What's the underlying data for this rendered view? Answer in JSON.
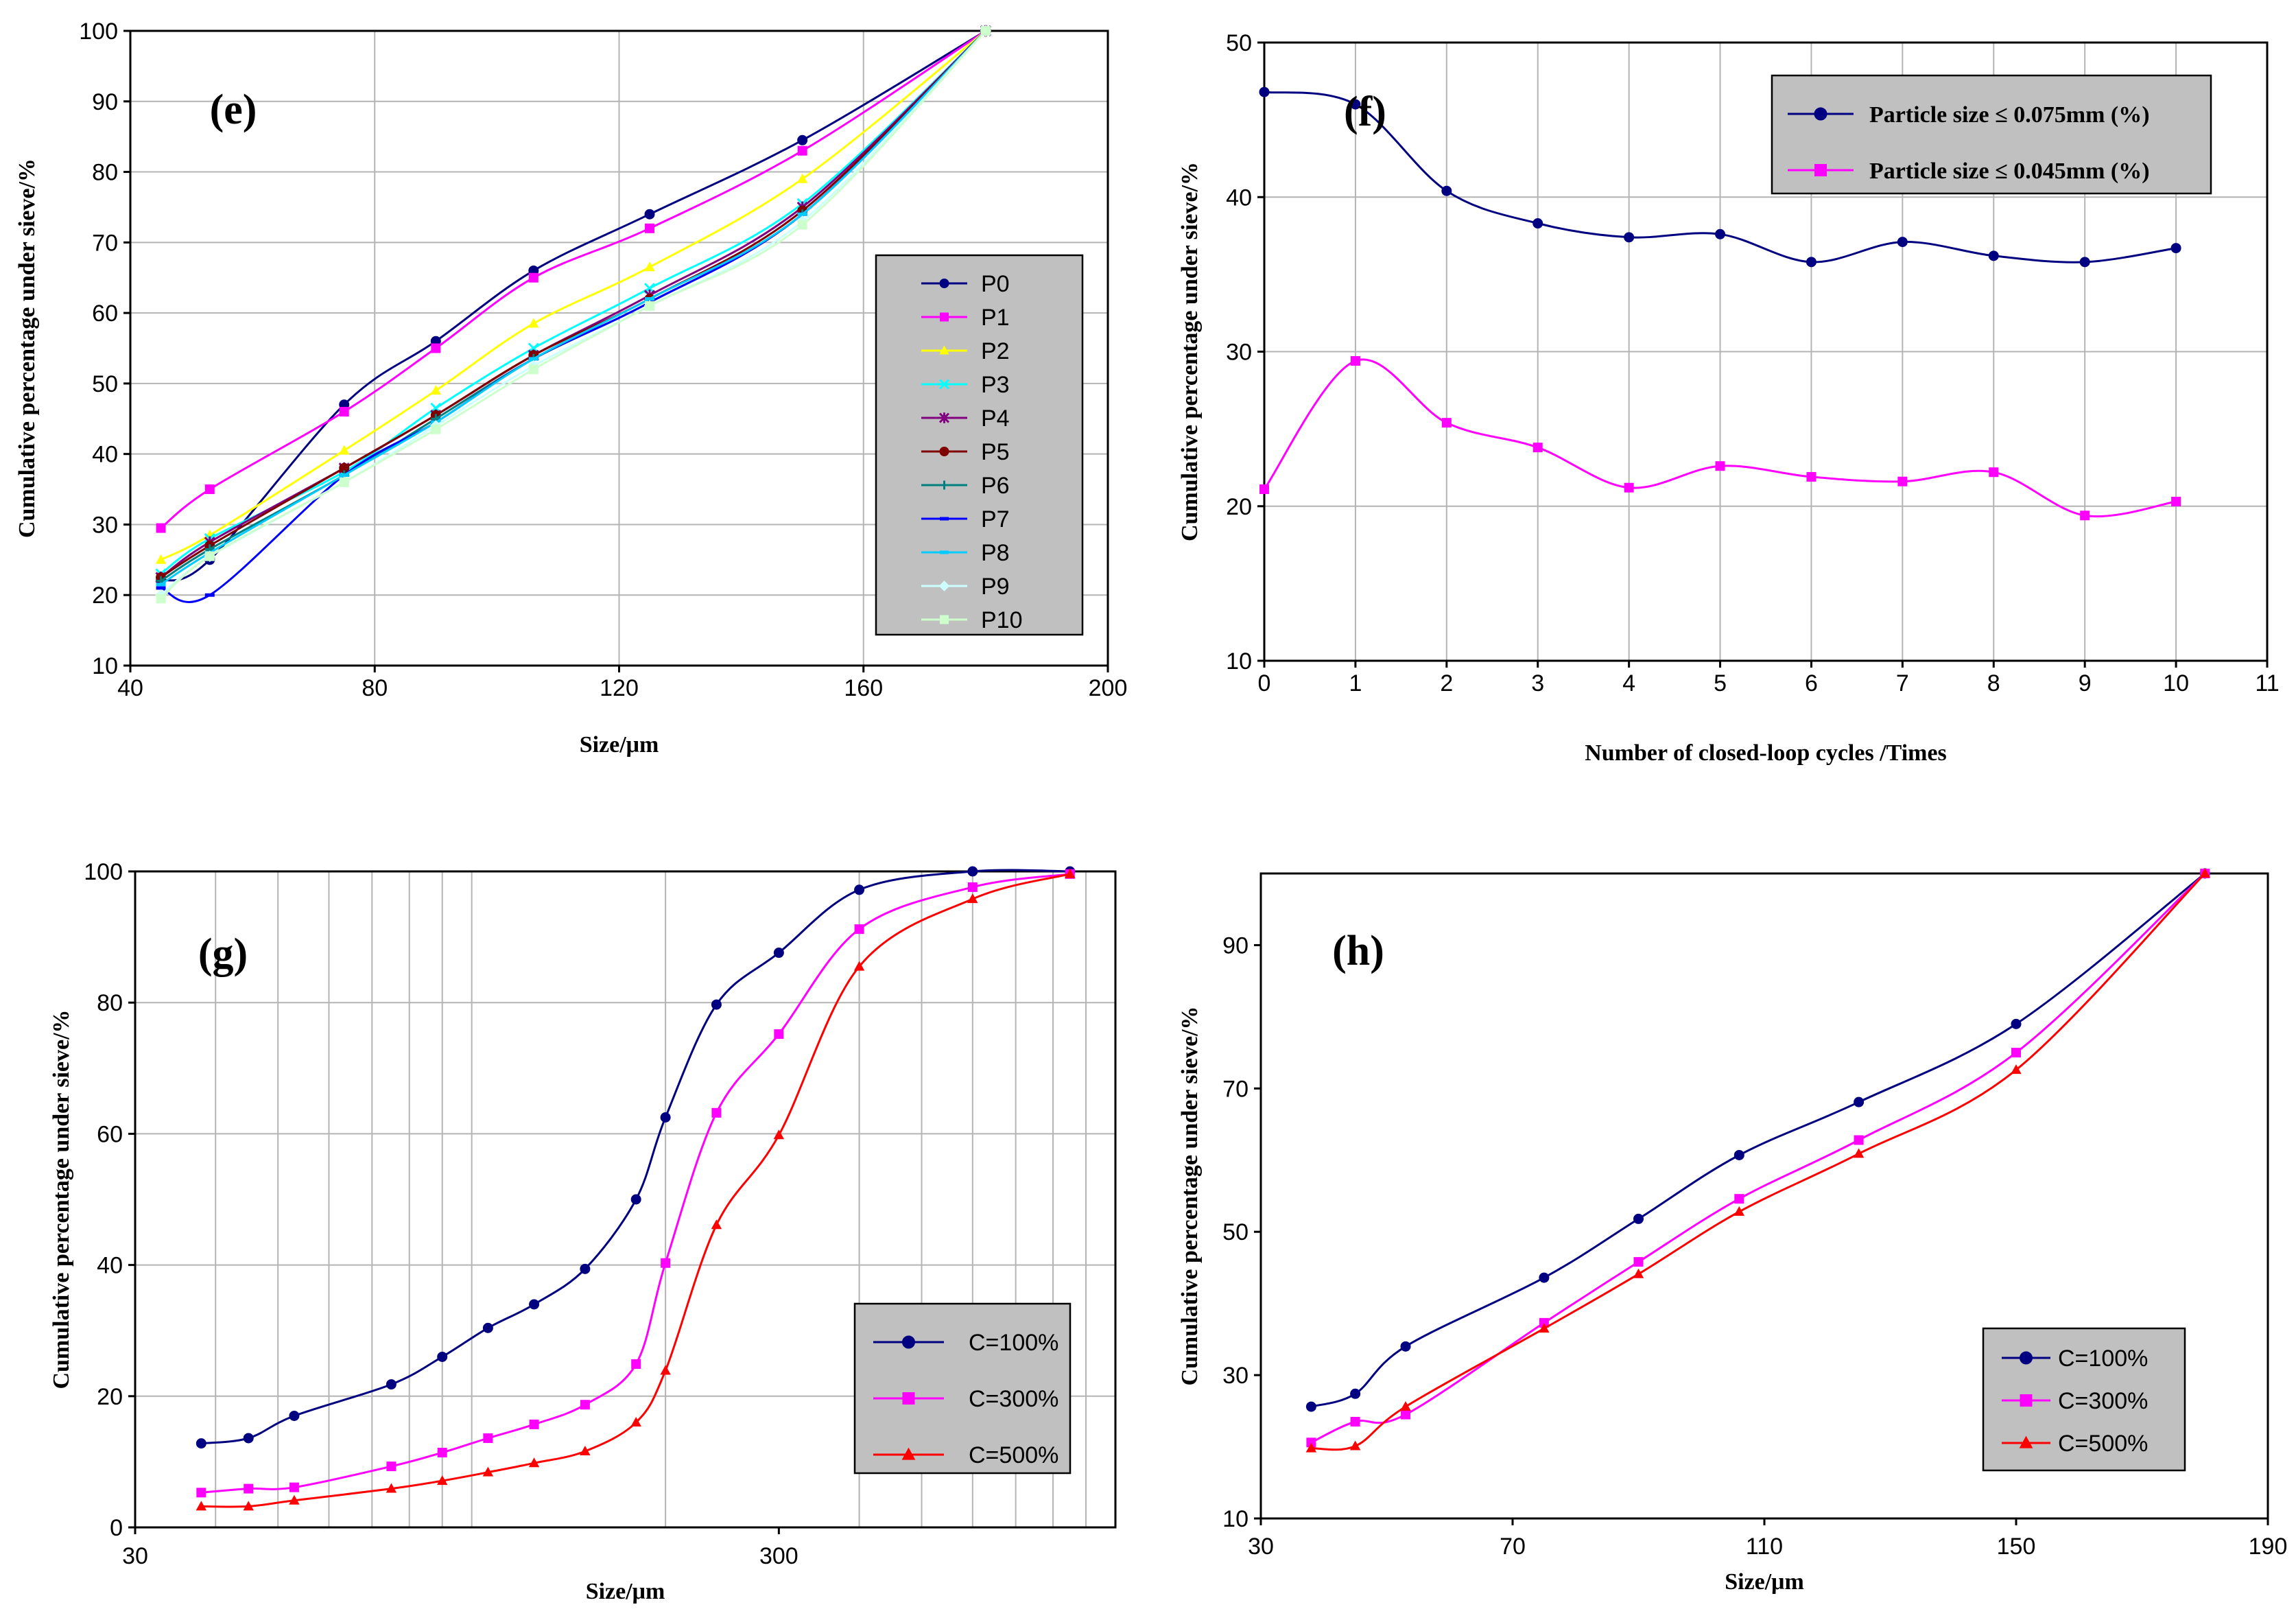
{
  "chart_data": [
    {
      "type": "line",
      "panel_label": "(e)",
      "xlabel": "Size/μm",
      "ylabel": "Cumulative percentage under sieve/%",
      "xlim": [
        40,
        200
      ],
      "ylim": [
        10,
        100
      ],
      "x_ticks": [
        40,
        80,
        120,
        160,
        200
      ],
      "y_ticks": [
        10,
        20,
        30,
        40,
        50,
        60,
        70,
        80,
        90,
        100
      ],
      "grid": true,
      "legend_position": "right-bottom",
      "series": [
        {
          "name": "P0",
          "color": "#000080",
          "marker": "circle",
          "x": [
            45,
            53,
            75,
            90,
            106,
            125,
            150,
            180
          ],
          "y": [
            22,
            25,
            47,
            56,
            66,
            74,
            84.5,
            100
          ]
        },
        {
          "name": "P1",
          "color": "#ff00ff",
          "marker": "square",
          "x": [
            45,
            53,
            75,
            90,
            106,
            125,
            150,
            180
          ],
          "y": [
            29.5,
            35,
            46,
            55,
            65,
            72,
            83,
            100
          ]
        },
        {
          "name": "P2",
          "color": "#ffff00",
          "marker": "triangle",
          "x": [
            45,
            53,
            75,
            90,
            106,
            125,
            150,
            180
          ],
          "y": [
            25,
            28.5,
            40.5,
            49,
            58.5,
            66.5,
            79,
            100
          ]
        },
        {
          "name": "P3",
          "color": "#00ffff",
          "marker": "x",
          "x": [
            45,
            53,
            75,
            90,
            106,
            125,
            150,
            180
          ],
          "y": [
            23,
            28,
            37.5,
            46.5,
            55,
            63.5,
            75.5,
            100
          ]
        },
        {
          "name": "P4",
          "color": "#800080",
          "marker": "star",
          "x": [
            45,
            53,
            75,
            90,
            106,
            125,
            150,
            180
          ],
          "y": [
            22.5,
            27.5,
            38,
            45.5,
            54,
            62.5,
            75,
            100
          ]
        },
        {
          "name": "P5",
          "color": "#800000",
          "marker": "circle",
          "x": [
            45,
            53,
            75,
            90,
            106,
            125,
            150,
            180
          ],
          "y": [
            22.5,
            27,
            38,
            45.5,
            54,
            62,
            74.5,
            100
          ]
        },
        {
          "name": "P6",
          "color": "#008080",
          "marker": "plus",
          "x": [
            45,
            53,
            75,
            90,
            106,
            125,
            150,
            180
          ],
          "y": [
            22,
            26.5,
            37,
            45,
            53.5,
            61.5,
            74,
            100
          ]
        },
        {
          "name": "P7",
          "color": "#0000ff",
          "marker": "dash",
          "x": [
            45,
            53,
            75,
            90,
            106,
            125,
            150,
            180
          ],
          "y": [
            21,
            20,
            37,
            44.5,
            53.5,
            61.5,
            74,
            100
          ]
        },
        {
          "name": "P8",
          "color": "#00ccff",
          "marker": "dash",
          "x": [
            45,
            53,
            75,
            90,
            106,
            125,
            150,
            180
          ],
          "y": [
            21.5,
            26,
            37,
            44.5,
            53.5,
            62,
            74,
            100
          ]
        },
        {
          "name": "P9",
          "color": "#ccffff",
          "marker": "diamond",
          "x": [
            45,
            53,
            75,
            90,
            106,
            125,
            150,
            180
          ],
          "y": [
            20,
            25.5,
            36,
            44,
            52.5,
            61,
            73,
            100
          ]
        },
        {
          "name": "P10",
          "color": "#ccffcc",
          "marker": "square",
          "x": [
            45,
            53,
            75,
            90,
            106,
            125,
            150,
            180
          ],
          "y": [
            19.5,
            25.5,
            36,
            43.5,
            52,
            61,
            72.5,
            100
          ]
        }
      ]
    },
    {
      "type": "line",
      "panel_label": "(f)",
      "xlabel": "Number of closed-loop cycles /Times",
      "ylabel": "Cumulative percentage under sieve/%",
      "xlim": [
        0,
        11
      ],
      "ylim": [
        10,
        50
      ],
      "x_ticks": [
        0,
        1,
        2,
        3,
        4,
        5,
        6,
        7,
        8,
        9,
        10,
        11
      ],
      "y_ticks": [
        10,
        20,
        30,
        40,
        50
      ],
      "grid": true,
      "legend_position": "top-right",
      "series": [
        {
          "name": "Particle size ≤ 0.075mm (%)",
          "color": "#000080",
          "marker": "circle",
          "x": [
            0,
            1,
            2,
            3,
            4,
            5,
            6,
            7,
            8,
            9,
            10
          ],
          "y": [
            46.8,
            46,
            40.4,
            38.3,
            37.4,
            37.6,
            35.8,
            37.1,
            36.2,
            35.8,
            36.7
          ]
        },
        {
          "name": "Particle size ≤ 0.045mm (%)",
          "color": "#ff00ff",
          "marker": "square",
          "x": [
            0,
            1,
            2,
            3,
            4,
            5,
            6,
            7,
            8,
            9,
            10
          ],
          "y": [
            21.1,
            29.4,
            25.4,
            23.8,
            21.2,
            22.6,
            21.9,
            21.6,
            22.2,
            19.4,
            20.3
          ]
        }
      ]
    },
    {
      "type": "line",
      "panel_label": "(g)",
      "xlabel": "Size/μm",
      "ylabel": "Cumulative percentage under sieve/%",
      "x_scale": "log",
      "xlim": [
        30,
        1000
      ],
      "ylim": [
        0,
        100
      ],
      "x_ticks": [
        30,
        300
      ],
      "y_ticks": [
        0,
        20,
        40,
        60,
        80,
        100
      ],
      "grid": true,
      "legend_position": "bottom-right",
      "series": [
        {
          "name": "C=100%",
          "color": "#000080",
          "marker": "circle",
          "x": [
            38,
            45,
            53,
            75,
            90,
            106,
            125,
            150,
            180,
            200,
            240,
            300,
            400,
            600,
            850
          ],
          "y": [
            12.8,
            13.6,
            17,
            21.8,
            26,
            30.4,
            34,
            39.4,
            50,
            62.5,
            79.7,
            87.6,
            97.2,
            100,
            100
          ]
        },
        {
          "name": "C=300%",
          "color": "#ff00ff",
          "marker": "square",
          "x": [
            38,
            45,
            53,
            75,
            90,
            106,
            125,
            150,
            180,
            200,
            240,
            300,
            400,
            600,
            850
          ],
          "y": [
            5.3,
            5.9,
            6.1,
            9.3,
            11.4,
            13.6,
            15.7,
            18.7,
            24.9,
            40.3,
            63.2,
            75.2,
            91.2,
            97.6,
            99.6
          ]
        },
        {
          "name": "C=500%",
          "color": "#ff0000",
          "marker": "triangle",
          "x": [
            38,
            45,
            53,
            75,
            90,
            106,
            125,
            150,
            180,
            200,
            240,
            300,
            400,
            600,
            850
          ],
          "y": [
            3.2,
            3.2,
            4.1,
            5.9,
            7.1,
            8.4,
            9.8,
            11.6,
            16,
            23.9,
            46.1,
            59.8,
            85.5,
            95.8,
            99.6
          ]
        }
      ]
    },
    {
      "type": "line",
      "panel_label": "(h)",
      "xlabel": "Size/μm",
      "ylabel": "Cumulative percentage under sieve/%",
      "xlim": [
        30,
        190
      ],
      "ylim": [
        10,
        100
      ],
      "x_ticks": [
        30,
        70,
        110,
        150,
        190
      ],
      "y_ticks": [
        10,
        30,
        50,
        70,
        90
      ],
      "grid": false,
      "legend_position": "bottom-right",
      "series": [
        {
          "name": "C=100%",
          "color": "#000080",
          "marker": "circle",
          "x": [
            38,
            45,
            53,
            75,
            90,
            106,
            125,
            150,
            180
          ],
          "y": [
            25.6,
            27.4,
            34,
            43.6,
            51.8,
            60.7,
            68.1,
            79,
            100
          ]
        },
        {
          "name": "C=300%",
          "color": "#ff00ff",
          "marker": "square",
          "x": [
            38,
            45,
            53,
            75,
            90,
            106,
            125,
            150,
            180
          ],
          "y": [
            20.6,
            23.5,
            24.5,
            37.3,
            45.8,
            54.6,
            62.8,
            75,
            100
          ]
        },
        {
          "name": "C=500%",
          "color": "#ff0000",
          "marker": "triangle",
          "x": [
            38,
            45,
            53,
            75,
            90,
            106,
            125,
            150,
            180
          ],
          "y": [
            19.8,
            20.1,
            25.6,
            36.5,
            44.1,
            52.8,
            60.9,
            72.6,
            100
          ]
        }
      ]
    }
  ]
}
